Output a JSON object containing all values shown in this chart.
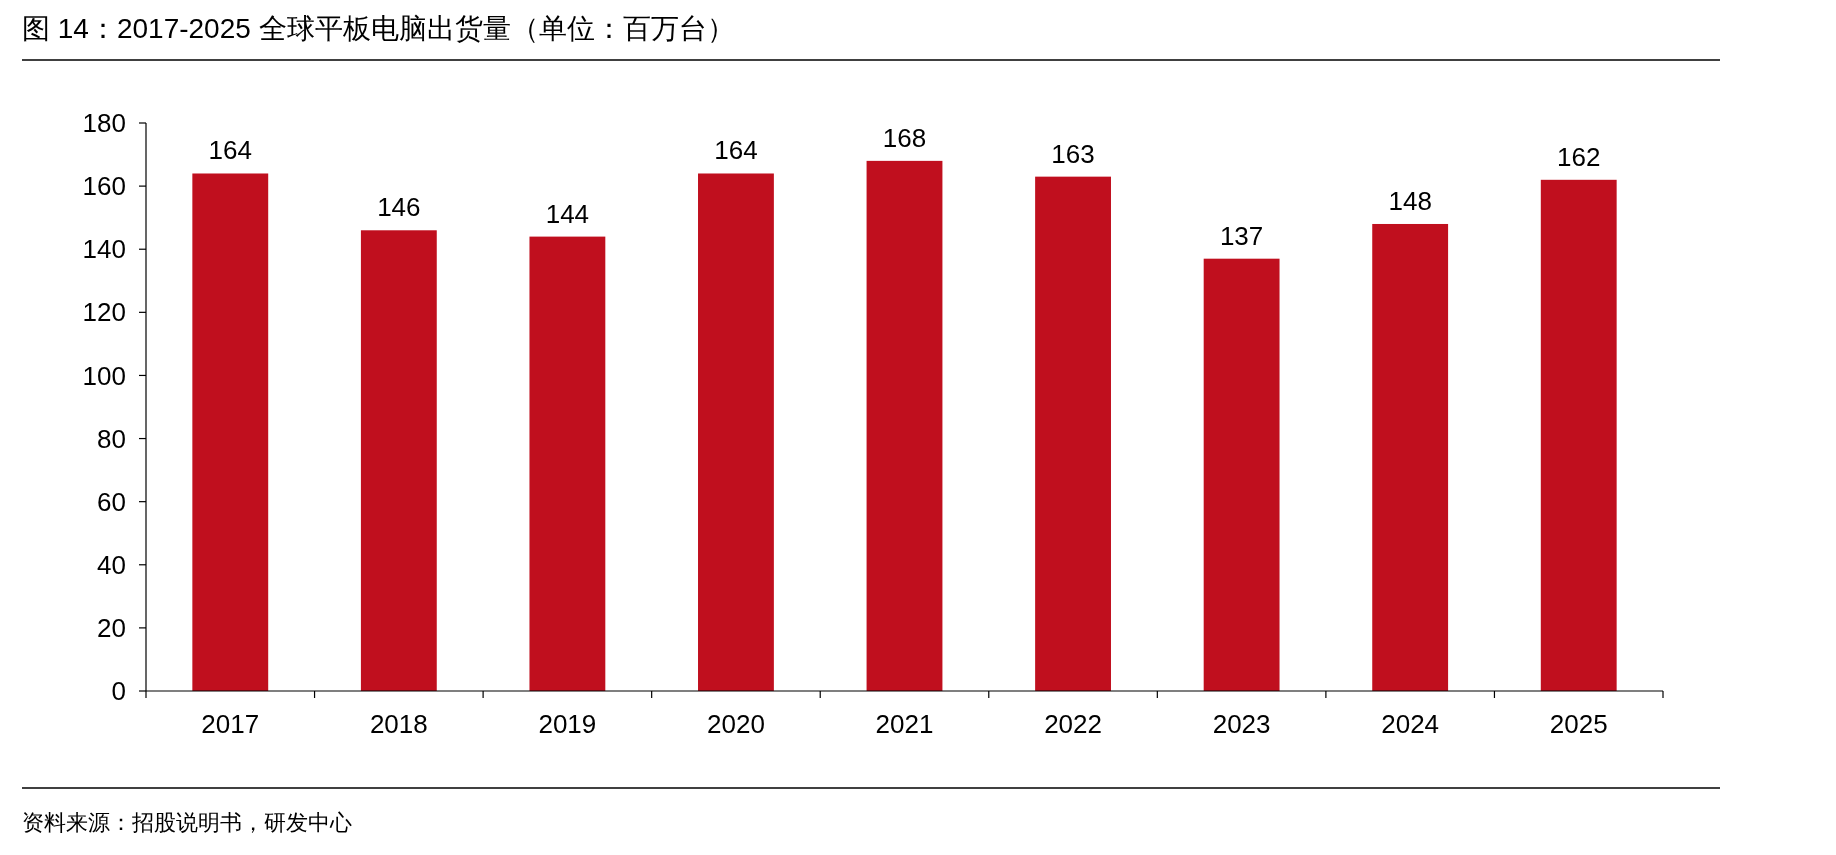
{
  "chart_data": {
    "type": "bar",
    "title": "图 14：2017-2025 全球平板电脑出货量（单位：百万台）",
    "categories": [
      "2017",
      "2018",
      "2019",
      "2020",
      "2021",
      "2022",
      "2023",
      "2024",
      "2025"
    ],
    "values": [
      164,
      146,
      144,
      164,
      168,
      163,
      137,
      148,
      162
    ],
    "color": "#c00f1e",
    "ylim": [
      0,
      180
    ],
    "yticks": [
      0,
      20,
      40,
      60,
      80,
      100,
      120,
      140,
      160,
      180
    ],
    "data_labels": true,
    "annotations": [
      "资料来源：招股说明书，研发中心"
    ]
  }
}
